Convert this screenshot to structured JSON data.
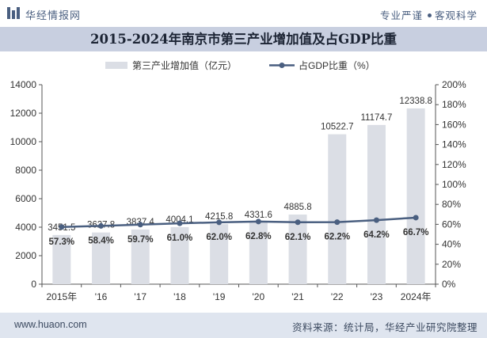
{
  "header": {
    "logo_text": "华经情报网",
    "tag_left": "专业严谨",
    "tag_right": "客观科学"
  },
  "title": "2015-2024年南京市第三产业增加值及占GDP比重",
  "legend": {
    "bar_series": "第三产业增加值（亿元）",
    "line_series": "占GDP比重（%）"
  },
  "footer": {
    "website": "www.huaon.com",
    "source": "资料来源：统计局，华经产业研究院整理"
  },
  "colors": {
    "bar": "#dbdee5",
    "line": "#4a5f80",
    "title_band": "#c8cfe0",
    "footer_band": "#dfe5ef"
  },
  "chart_data": {
    "type": "bar+line",
    "categories": [
      "2015年",
      "'16",
      "'17",
      "'18",
      "'19",
      "'20",
      "'21",
      "'22",
      "'23",
      "2024年"
    ],
    "series": [
      {
        "name": "第三产业增加值（亿元）",
        "type": "bar",
        "axis": "left",
        "values": [
          3451.5,
          3627.8,
          3837.4,
          4004.1,
          4215.8,
          4331.6,
          4885.8,
          10522.7,
          11174.7,
          12338.8
        ],
        "labels": [
          "3451.5",
          "3627.8",
          "3837.4",
          "4004.1",
          "4215.8",
          "4331.6",
          "4885.8",
          "10522.7",
          "11174.7",
          "12338.8"
        ]
      },
      {
        "name": "占GDP比重（%）",
        "type": "line",
        "axis": "right",
        "values": [
          57.3,
          58.4,
          59.7,
          61.0,
          62.0,
          62.8,
          62.1,
          62.2,
          64.2,
          66.7
        ],
        "labels": [
          "57.3%",
          "58.4%",
          "59.7%",
          "61.0%",
          "62.0%",
          "62.8%",
          "62.1%",
          "62.2%",
          "64.2%",
          "66.7%"
        ]
      }
    ],
    "y_left": {
      "min": 0,
      "max": 14000,
      "ticks": [
        "0",
        "2000",
        "4000",
        "6000",
        "8000",
        "10000",
        "12000",
        "14000"
      ]
    },
    "y_right": {
      "min": 0,
      "max": 200,
      "ticks": [
        "0%",
        "20%",
        "40%",
        "60%",
        "80%",
        "100%",
        "120%",
        "140%",
        "160%",
        "180%",
        "200%"
      ]
    },
    "grid": false,
    "legend_position": "top"
  }
}
